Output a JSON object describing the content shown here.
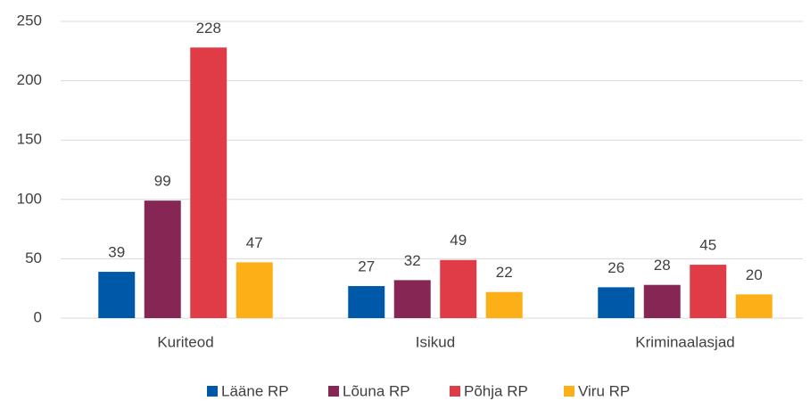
{
  "chart_data": {
    "type": "bar",
    "categories": [
      "Kuriteod",
      "Isikud",
      "Kriminaalasjad"
    ],
    "series": [
      {
        "name": "Lääne RP",
        "color": "#0058a8",
        "values": [
          39,
          27,
          26
        ]
      },
      {
        "name": "Lõuna RP",
        "color": "#862654",
        "values": [
          99,
          32,
          28
        ]
      },
      {
        "name": "Põhja RP",
        "color": "#e03c48",
        "values": [
          228,
          49,
          45
        ]
      },
      {
        "name": "Viru RP",
        "color": "#fcaf17",
        "values": [
          47,
          22,
          20
        ]
      }
    ],
    "ylim": [
      0,
      250
    ],
    "yticks": [
      0,
      50,
      100,
      150,
      200,
      250
    ],
    "grid": true,
    "legend": "bottom"
  }
}
